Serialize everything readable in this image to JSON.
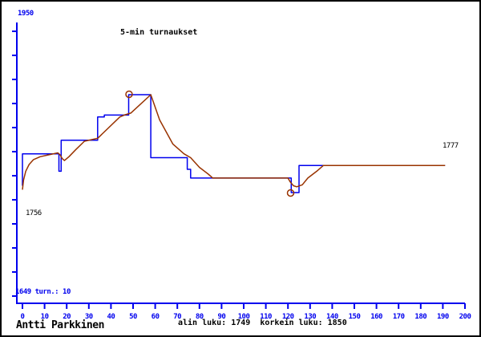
{
  "title": "5-min turnaukset",
  "labels": {
    "axis_top": "1950",
    "axis_bottom_info": "1649 turn.: 10",
    "start_value": "1756",
    "end_value": "1777"
  },
  "footer": {
    "player": "Antti Parkkinen",
    "stats": "alin luku: 1749  korkein luku: 1850"
  },
  "colors": {
    "axis": "#0000ee",
    "tick_label": "#0000ee",
    "step_line": "#0000ee",
    "smooth_line": "#993300",
    "marker": "#993300",
    "text": "#000000",
    "background": "#ffffff",
    "border": "#000000"
  },
  "chart_data": {
    "type": "line",
    "title": "5-min turnaukset",
    "xlabel": "",
    "ylabel": "",
    "xlim": [
      0,
      200
    ],
    "ylim": [
      1649,
      1950
    ],
    "y_axis_top_label": 1950,
    "y_axis_bottom_label": 1649,
    "tournaments": 10,
    "min_rating": 1749,
    "max_rating": 1850,
    "start_rating": 1756,
    "end_rating": 1777,
    "grid": false,
    "legend": "none",
    "x_ticks": [
      0,
      10,
      20,
      30,
      40,
      50,
      60,
      70,
      80,
      90,
      100,
      110,
      120,
      130,
      140,
      150,
      160,
      170,
      180,
      190,
      200
    ],
    "series": [
      {
        "name": "rating-steps",
        "color": "#0000ee",
        "points": [
          [
            0,
            1756
          ],
          [
            0,
            1789
          ],
          [
            16.5,
            1789
          ],
          [
            16.5,
            1771
          ],
          [
            17.5,
            1771
          ],
          [
            17.5,
            1803
          ],
          [
            34,
            1803
          ],
          [
            34,
            1827
          ],
          [
            37,
            1827
          ],
          [
            37,
            1829
          ],
          [
            48,
            1829
          ],
          [
            48,
            1850
          ],
          [
            58,
            1850
          ],
          [
            58,
            1785
          ],
          [
            74.5,
            1785
          ],
          [
            74.5,
            1773
          ],
          [
            76,
            1773
          ],
          [
            76,
            1764
          ],
          [
            121.5,
            1764
          ],
          [
            121.5,
            1749
          ],
          [
            125,
            1749
          ],
          [
            125,
            1777
          ],
          [
            136,
            1777
          ],
          [
            191,
            1777
          ]
        ]
      },
      {
        "name": "rating-smooth",
        "color": "#993300",
        "points": [
          [
            0,
            1752
          ],
          [
            0.5,
            1762
          ],
          [
            1.5,
            1771
          ],
          [
            3,
            1778
          ],
          [
            5,
            1783
          ],
          [
            8,
            1786
          ],
          [
            12,
            1788
          ],
          [
            16,
            1790
          ],
          [
            17,
            1788
          ],
          [
            18,
            1784
          ],
          [
            19,
            1782
          ],
          [
            21,
            1786
          ],
          [
            24,
            1793
          ],
          [
            28,
            1802
          ],
          [
            34,
            1805
          ],
          [
            44,
            1827
          ],
          [
            46,
            1829
          ],
          [
            49,
            1831
          ],
          [
            58,
            1850
          ],
          [
            62,
            1824
          ],
          [
            68,
            1799
          ],
          [
            73,
            1789
          ],
          [
            76,
            1785
          ],
          [
            80,
            1775
          ],
          [
            84,
            1768
          ],
          [
            86,
            1764
          ],
          [
            120,
            1764
          ],
          [
            121,
            1760
          ],
          [
            122.5,
            1756
          ],
          [
            124,
            1755
          ],
          [
            126.5,
            1757
          ],
          [
            129,
            1764
          ],
          [
            133,
            1771
          ],
          [
            136,
            1777
          ],
          [
            191,
            1777
          ]
        ]
      }
    ],
    "markers": [
      {
        "x": 48.2,
        "y": 1850.4,
        "meaning": "korkein luku 1850"
      },
      {
        "x": 121.2,
        "y": 1748.6,
        "meaning": "alin luku 1749"
      }
    ]
  }
}
